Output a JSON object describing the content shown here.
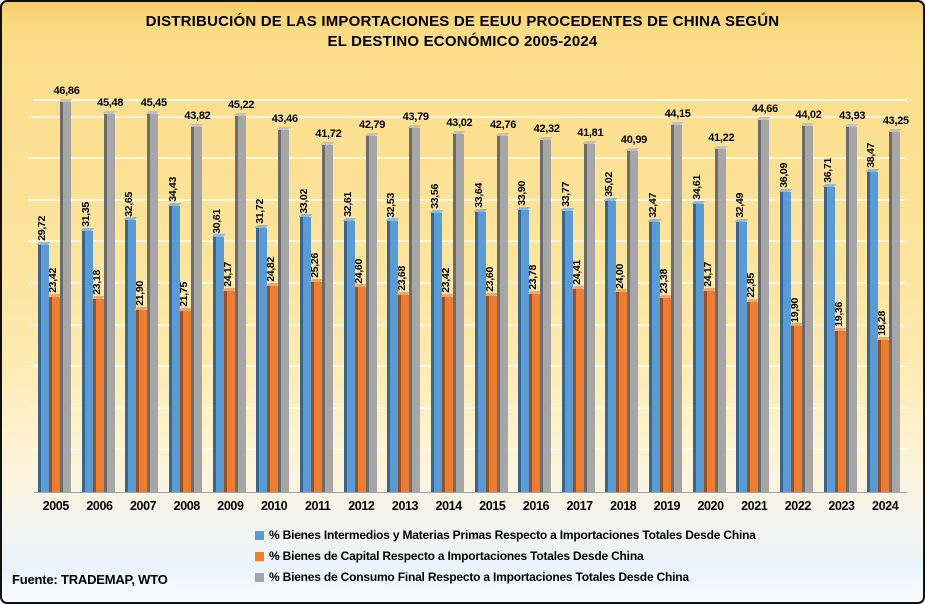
{
  "title": {
    "line1": "DISTRIBUCIÓN DE LAS IMPORTACIONES DE EEUU PROCEDENTES DE CHINA SEGÚN",
    "line2": "EL DESTINO ECONÓMICO 2005-2024"
  },
  "source": "Fuente: TRADEMAP, WTO",
  "colors": {
    "intermediate_goods": "#5B9BD5",
    "capital_goods": "#ED7D31",
    "consumption_goods": "#A6A6A6"
  },
  "chart_data": {
    "type": "bar",
    "title": "DISTRIBUCIÓN DE LAS IMPORTACIONES DE EEUU PROCEDENTES DE CHINA SEGÚN EL DESTINO ECONÓMICO 2005-2024",
    "categories": [
      "2005",
      "2006",
      "2007",
      "2008",
      "2009",
      "2010",
      "2011",
      "2012",
      "2013",
      "2014",
      "2015",
      "2016",
      "2017",
      "2018",
      "2019",
      "2020",
      "2021",
      "2022",
      "2023",
      "2024"
    ],
    "series": [
      {
        "name": "% Bienes Intermedios y Materias Primas Respecto a Importaciones Totales Desde China",
        "color": "#5B9BD5",
        "label_orientation": "vertical",
        "values": [
          29.72,
          31.35,
          32.65,
          34.43,
          30.61,
          31.72,
          33.02,
          32.61,
          32.53,
          33.56,
          33.64,
          33.9,
          33.77,
          35.02,
          32.47,
          34.61,
          32.49,
          36.09,
          36.71,
          38.47
        ]
      },
      {
        "name": "% Bienes de Capital Respecto a Importaciones Totales Desde China",
        "color": "#ED7D31",
        "label_orientation": "vertical",
        "values": [
          23.42,
          23.18,
          21.9,
          21.75,
          24.17,
          24.82,
          25.26,
          24.6,
          23.68,
          23.42,
          23.6,
          23.78,
          24.41,
          24.0,
          23.38,
          24.17,
          22.85,
          19.9,
          19.36,
          18.28
        ]
      },
      {
        "name": "% Bienes de Consumo Final Respecto a Importaciones Totales Desde China",
        "color": "#A6A6A6",
        "label_orientation": "horizontal",
        "values": [
          46.86,
          45.48,
          45.45,
          43.82,
          45.22,
          43.46,
          41.72,
          42.79,
          43.79,
          43.02,
          42.76,
          42.32,
          41.81,
          40.99,
          44.15,
          41.22,
          44.66,
          44.02,
          43.93,
          43.25
        ]
      }
    ],
    "xlabel": "",
    "ylabel": "",
    "ylim": [
      0,
      47
    ],
    "gridline_step": 5,
    "grid": true,
    "legend_position": "bottom",
    "value_labels": true,
    "decimal_separator": ","
  }
}
